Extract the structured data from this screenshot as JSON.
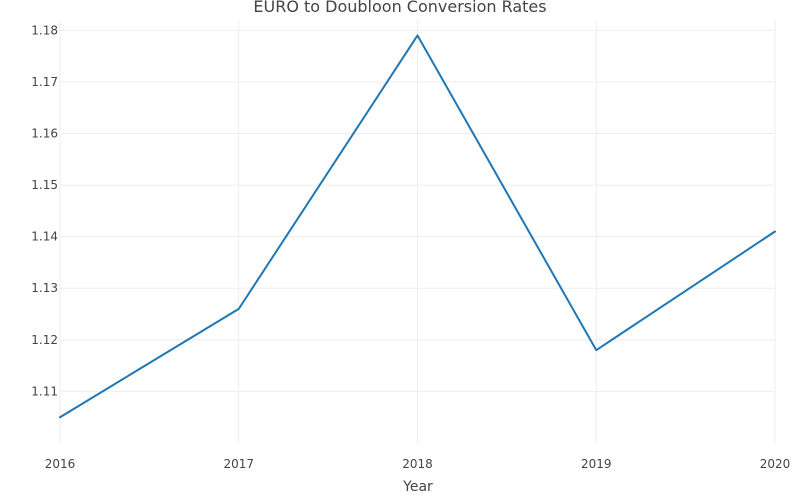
{
  "chart_data": {
    "type": "line",
    "title": "EURO to Doubloon Conversion Rates",
    "xlabel": "Year",
    "ylabel": "",
    "x": [
      "2016",
      "2017",
      "2018",
      "2019",
      "2020"
    ],
    "y_ticks": [
      "1.11",
      "1.12",
      "1.13",
      "1.14",
      "1.15",
      "1.16",
      "1.17",
      "1.18"
    ],
    "xlim": [
      2016,
      2020
    ],
    "ylim": [
      1.1,
      1.182
    ],
    "grid": true,
    "legend": "none",
    "series": [
      {
        "values": [
          1.105,
          1.126,
          1.179,
          1.118,
          1.141
        ],
        "color": "#1f77b4"
      }
    ]
  }
}
